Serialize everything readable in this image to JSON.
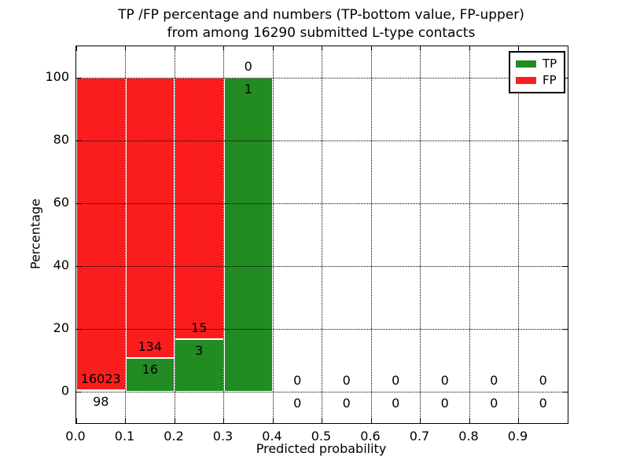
{
  "title": {
    "line1": "TP /FP percentage and numbers (TP-bottom value, FP-upper)",
    "line2": "from among 16290 submitted L-type contacts"
  },
  "axes": {
    "xlabel": "Predicted probability",
    "ylabel": "Percentage",
    "x_tick_labels": [
      "0.0",
      "0.1",
      "0.2",
      "0.3",
      "0.4",
      "0.5",
      "0.6",
      "0.7",
      "0.8",
      "0.9"
    ],
    "y_tick_labels": [
      "0",
      "20",
      "40",
      "60",
      "80",
      "100"
    ],
    "y_tick_values": [
      0,
      20,
      40,
      60,
      80,
      100
    ]
  },
  "legend": {
    "position": "upper right",
    "items": [
      {
        "label": "TP",
        "color": "#228b22"
      },
      {
        "label": "FP",
        "color": "#fb1d1d"
      }
    ]
  },
  "colors": {
    "tp": "#228b22",
    "fp": "#fb1d1d",
    "grid": "#000000",
    "background": "#ffffff"
  },
  "chart_data": {
    "type": "bar",
    "stacked": true,
    "title": "TP /FP percentage and numbers (TP-bottom value, FP-upper) from among 16290 submitted L-type contacts",
    "xlabel": "Predicted probability",
    "ylabel": "Percentage",
    "xlim": [
      0.0,
      1.0
    ],
    "ylim": [
      -10,
      110
    ],
    "grid": true,
    "bin_width": 0.1,
    "total_submitted": 16290,
    "categories": [
      "0.0-0.1",
      "0.1-0.2",
      "0.2-0.3",
      "0.3-0.4",
      "0.4-0.5",
      "0.5-0.6",
      "0.6-0.7",
      "0.7-0.8",
      "0.8-0.9",
      "0.9-1.0"
    ],
    "series": [
      {
        "name": "TP",
        "color": "#228b22",
        "counts": [
          98,
          16,
          3,
          1,
          0,
          0,
          0,
          0,
          0,
          0
        ],
        "percents": [
          0.61,
          10.67,
          16.67,
          100,
          0,
          0,
          0,
          0,
          0,
          0
        ]
      },
      {
        "name": "FP",
        "color": "#fb1d1d",
        "counts": [
          16023,
          134,
          15,
          0,
          0,
          0,
          0,
          0,
          0,
          0
        ],
        "percents": [
          99.39,
          89.33,
          83.33,
          0,
          0,
          0,
          0,
          0,
          0,
          0
        ]
      }
    ],
    "annotation_rule": "FP count printed just above top of TP segment; TP count printed just below it"
  }
}
